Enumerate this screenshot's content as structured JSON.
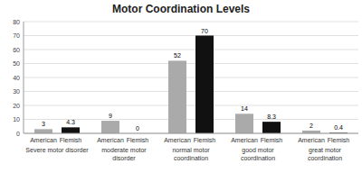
{
  "chart_data": {
    "type": "bar",
    "title": "Motor Coordination Levels",
    "categories": [
      "Severe motor disorder",
      "moderate motor\ndisorder",
      "normal motor\ncoordination",
      "good motor\ncoordination",
      "great motor\ncoordination"
    ],
    "series": [
      {
        "name": "American",
        "color": "#aaaaaa",
        "values": [
          3,
          9,
          52,
          14,
          2
        ]
      },
      {
        "name": "Flemish",
        "color": "#111111",
        "values": [
          4.3,
          0,
          70,
          8.3,
          0.4
        ]
      }
    ],
    "ylim": [
      0,
      80
    ],
    "yticks": [
      0,
      10,
      20,
      30,
      40,
      50,
      60,
      70,
      80
    ],
    "grid": true,
    "data_labels": true
  }
}
